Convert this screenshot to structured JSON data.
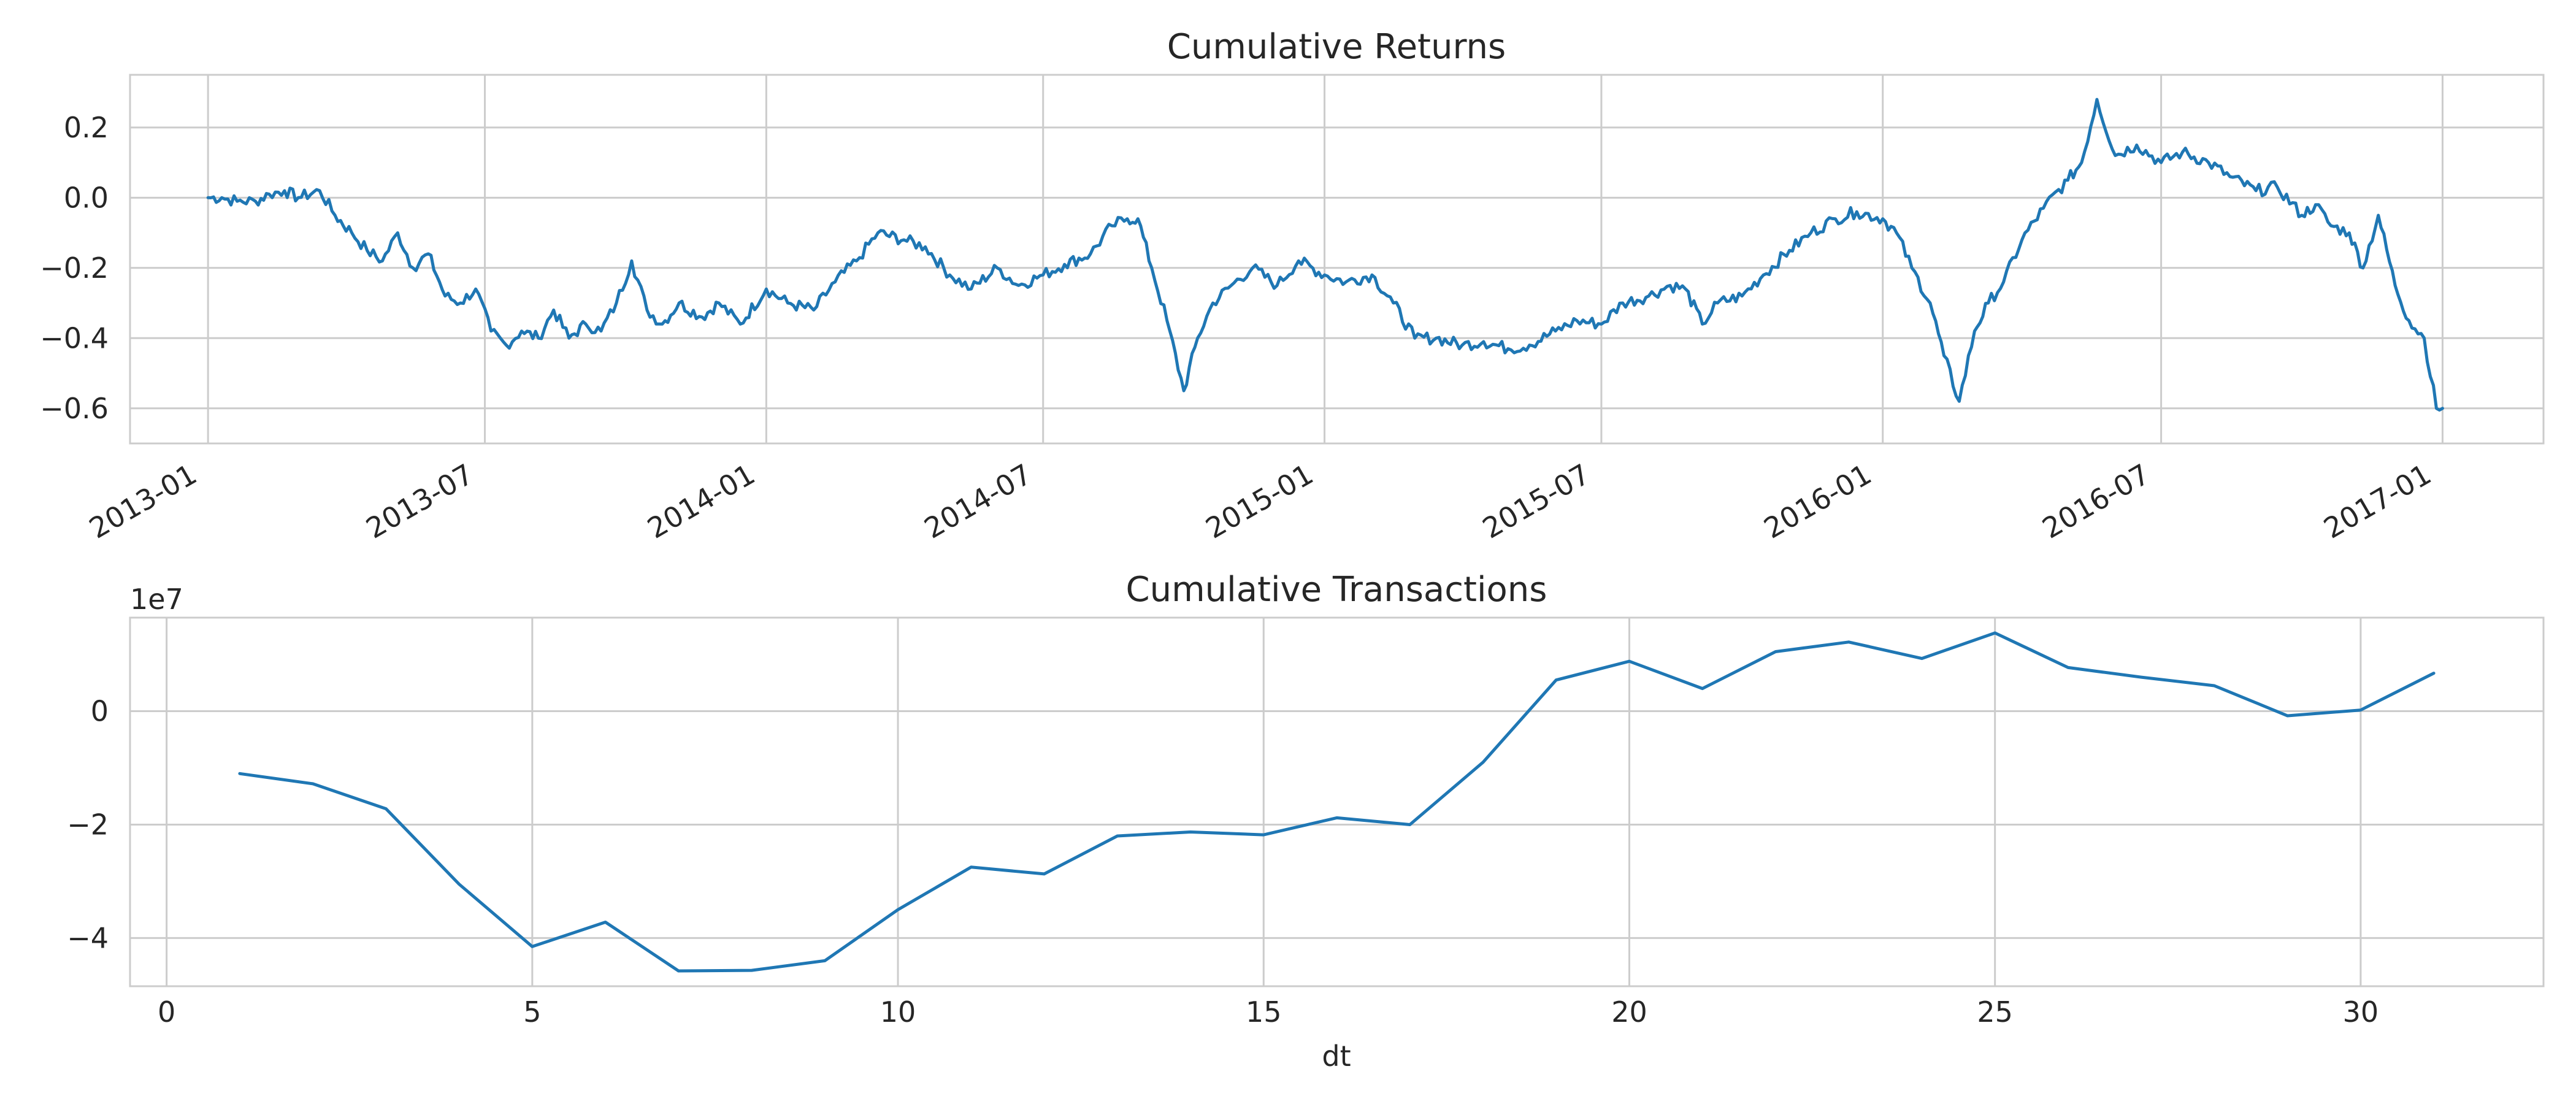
{
  "chart_data": [
    {
      "type": "line",
      "title": "Cumulative Returns",
      "xlabel": "",
      "ylabel": "",
      "x_scale": "time",
      "xlim": [
        "2012-11-11",
        "2017-03-08"
      ],
      "ylim": [
        -0.7,
        0.35
      ],
      "x_ticks": [
        "2013-01",
        "2013-07",
        "2014-01",
        "2014-07",
        "2015-01",
        "2015-07",
        "2016-01",
        "2016-07",
        "2017-01"
      ],
      "x_tick_dates": [
        "2013-01-01",
        "2013-07-01",
        "2014-01-01",
        "2014-07-01",
        "2015-01-01",
        "2015-07-01",
        "2016-01-01",
        "2016-07-01",
        "2017-01-01"
      ],
      "y_ticks": [
        0.2,
        0.0,
        -0.2,
        -0.4,
        -0.6
      ],
      "y_tick_labels": [
        "0.2",
        "0.0",
        "−0.2",
        "−0.4",
        "−0.6"
      ],
      "grid": true,
      "color": "#1f77b4",
      "series": [
        {
          "x": [
            "2013-01-01",
            "2013-01-10",
            "2013-01-20",
            "2013-02-01",
            "2013-02-10",
            "2013-02-20",
            "2013-03-01",
            "2013-03-15",
            "2013-03-25",
            "2013-04-05",
            "2013-04-15",
            "2013-04-25",
            "2013-05-05",
            "2013-05-15",
            "2013-05-25",
            "2013-06-05",
            "2013-06-15",
            "2013-06-25",
            "2013-07-05",
            "2013-07-15",
            "2013-07-25",
            "2013-08-05",
            "2013-08-15",
            "2013-08-25",
            "2013-09-05",
            "2013-09-15",
            "2013-09-25",
            "2013-10-05",
            "2013-10-15",
            "2013-10-25",
            "2013-11-05",
            "2013-11-20",
            "2013-12-01",
            "2013-12-15",
            "2014-01-01",
            "2014-01-15",
            "2014-02-01",
            "2014-02-15",
            "2014-03-01",
            "2014-03-15",
            "2014-04-01",
            "2014-04-15",
            "2014-05-01",
            "2014-05-15",
            "2014-06-01",
            "2014-06-15",
            "2014-07-01",
            "2014-07-15",
            "2014-08-01",
            "2014-08-15",
            "2014-08-25",
            "2014-09-01",
            "2014-09-10",
            "2014-09-20",
            "2014-10-01",
            "2014-10-10",
            "2014-10-20",
            "2014-11-01",
            "2014-11-15",
            "2014-12-01",
            "2014-12-15",
            "2015-01-01",
            "2015-01-15",
            "2015-02-01",
            "2015-02-15",
            "2015-03-01",
            "2015-03-15",
            "2015-04-01",
            "2015-04-15",
            "2015-05-01",
            "2015-05-15",
            "2015-06-01",
            "2015-06-15",
            "2015-07-01",
            "2015-07-15",
            "2015-08-01",
            "2015-08-15",
            "2015-08-25",
            "2015-09-05",
            "2015-09-15",
            "2015-10-01",
            "2015-10-15",
            "2015-11-01",
            "2015-11-15",
            "2015-12-01",
            "2015-12-15",
            "2016-01-01",
            "2016-01-10",
            "2016-01-20",
            "2016-02-01",
            "2016-02-10",
            "2016-02-20",
            "2016-03-01",
            "2016-03-10",
            "2016-03-20",
            "2016-04-01",
            "2016-04-15",
            "2016-05-01",
            "2016-05-10",
            "2016-05-20",
            "2016-06-01",
            "2016-06-15",
            "2016-07-01",
            "2016-07-15",
            "2016-08-01",
            "2016-08-15",
            "2016-09-01",
            "2016-09-15",
            "2016-10-01",
            "2016-10-10",
            "2016-10-20",
            "2016-11-01",
            "2016-11-10",
            "2016-11-20",
            "2016-12-01",
            "2016-12-10",
            "2016-12-20",
            "2016-12-28",
            "2017-01-01"
          ],
          "y": [
            0.0,
            0.0,
            -0.01,
            -0.01,
            0.01,
            0.02,
            0.0,
            0.02,
            -0.05,
            -0.1,
            -0.15,
            -0.18,
            -0.1,
            -0.2,
            -0.16,
            -0.28,
            -0.3,
            -0.26,
            -0.38,
            -0.42,
            -0.38,
            -0.4,
            -0.32,
            -0.4,
            -0.36,
            -0.38,
            -0.3,
            -0.18,
            -0.32,
            -0.36,
            -0.3,
            -0.34,
            -0.3,
            -0.36,
            -0.26,
            -0.3,
            -0.32,
            -0.24,
            -0.18,
            -0.1,
            -0.12,
            -0.14,
            -0.22,
            -0.26,
            -0.2,
            -0.25,
            -0.22,
            -0.19,
            -0.16,
            -0.08,
            -0.06,
            -0.06,
            -0.2,
            -0.35,
            -0.55,
            -0.4,
            -0.3,
            -0.25,
            -0.2,
            -0.25,
            -0.18,
            -0.22,
            -0.24,
            -0.22,
            -0.3,
            -0.4,
            -0.4,
            -0.42,
            -0.41,
            -0.43,
            -0.42,
            -0.38,
            -0.35,
            -0.36,
            -0.3,
            -0.28,
            -0.25,
            -0.26,
            -0.36,
            -0.3,
            -0.28,
            -0.22,
            -0.15,
            -0.1,
            -0.06,
            -0.04,
            -0.06,
            -0.1,
            -0.2,
            -0.3,
            -0.45,
            -0.58,
            -0.38,
            -0.3,
            -0.24,
            -0.12,
            -0.03,
            0.05,
            0.1,
            0.28,
            0.12,
            0.15,
            0.1,
            0.13,
            0.1,
            0.06,
            0.02,
            0.03,
            -0.05,
            -0.02,
            -0.08,
            -0.1,
            -0.2,
            -0.05,
            -0.25,
            -0.35,
            -0.4,
            -0.6,
            -0.6
          ]
        }
      ]
    },
    {
      "type": "line",
      "title": "Cumulative Transactions",
      "xlabel": "dt",
      "ylabel": "",
      "offset_label": "1e7",
      "xlim": [
        -0.5,
        32.5
      ],
      "ylim": [
        -4.85,
        1.65
      ],
      "x_ticks": [
        0,
        5,
        10,
        15,
        20,
        25,
        30
      ],
      "x_tick_labels": [
        "0",
        "5",
        "10",
        "15",
        "20",
        "25",
        "30"
      ],
      "y_ticks": [
        0,
        -2,
        -4
      ],
      "y_tick_labels": [
        "0",
        "−2",
        "−4"
      ],
      "grid": true,
      "color": "#1f77b4",
      "series": [
        {
          "x": [
            1,
            2,
            3,
            4,
            5,
            6,
            7,
            8,
            9,
            10,
            11,
            12,
            13,
            14,
            15,
            16,
            17,
            18,
            19,
            20,
            21,
            22,
            23,
            24,
            25,
            26,
            27,
            28,
            29,
            30,
            31
          ],
          "y": [
            -1.1,
            -1.28,
            -1.72,
            -3.05,
            -4.15,
            -3.72,
            -4.58,
            -4.57,
            -4.4,
            -3.5,
            -2.75,
            -2.87,
            -2.2,
            -2.13,
            -2.18,
            -1.88,
            -2.0,
            -0.9,
            0.55,
            0.88,
            0.4,
            1.05,
            1.22,
            0.93,
            1.38,
            0.77,
            0.6,
            0.45,
            -0.08,
            0.02,
            0.67
          ]
        }
      ]
    }
  ]
}
